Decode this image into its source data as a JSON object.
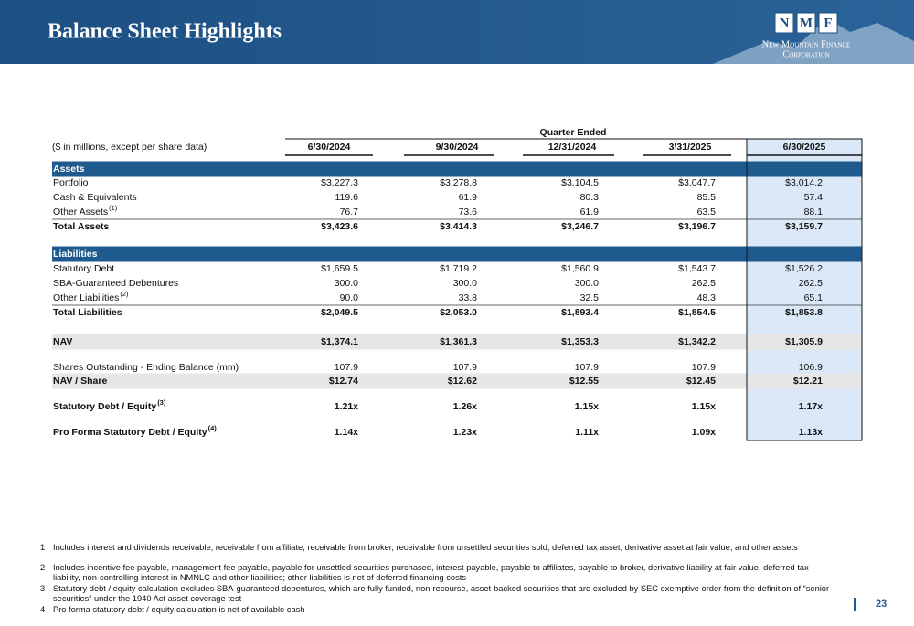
{
  "header": {
    "title": "Balance Sheet Highlights",
    "logo": {
      "letters": [
        "N",
        "M",
        "F"
      ],
      "line1": "New Mountain Finance",
      "line2": "Corporation"
    }
  },
  "table": {
    "group_header": "Quarter Ended",
    "units_label": "($ in millions, except per share data)",
    "columns": [
      "6/30/2024",
      "9/30/2024",
      "12/31/2024",
      "3/31/2025",
      "6/30/2025"
    ],
    "rows": [
      {
        "label": "Assets"
      },
      {
        "label": "Portfolio",
        "values": [
          "$3,227.3",
          "$3,278.8",
          "$3,104.5",
          "$3,047.7",
          "$3,014.2"
        ]
      },
      {
        "label": "Cash & Equivalents",
        "values": [
          "119.6",
          "61.9",
          "80.3",
          "85.5",
          "57.4"
        ]
      },
      {
        "label": "Other Assets",
        "note": "(1)",
        "values": [
          "76.7",
          "73.6",
          "61.9",
          "63.5",
          "88.1"
        ]
      },
      {
        "label": "Total Assets",
        "values": [
          "$3,423.6",
          "$3,414.3",
          "$3,246.7",
          "$3,196.7",
          "$3,159.7"
        ]
      },
      {
        "label": "Liabilities"
      },
      {
        "label": "Statutory Debt",
        "values": [
          "$1,659.5",
          "$1,719.2",
          "$1,560.9",
          "$1,543.7",
          "$1,526.2"
        ]
      },
      {
        "label": "SBA-Guaranteed Debentures",
        "values": [
          "300.0",
          "300.0",
          "300.0",
          "262.5",
          "262.5"
        ]
      },
      {
        "label": "Other Liabilities",
        "note": "(2)",
        "values": [
          "90.0",
          "33.8",
          "32.5",
          "48.3",
          "65.1"
        ]
      },
      {
        "label": "Total Liabilities",
        "values": [
          "$2,049.5",
          "$2,053.0",
          "$1,893.4",
          "$1,854.5",
          "$1,853.8"
        ]
      },
      {
        "label": "NAV",
        "values": [
          "$1,374.1",
          "$1,361.3",
          "$1,353.3",
          "$1,342.2",
          "$1,305.9"
        ]
      },
      {
        "label": "Shares Outstanding - Ending Balance (mm)",
        "values": [
          "107.9",
          "107.9",
          "107.9",
          "107.9",
          "106.9"
        ]
      },
      {
        "label": "NAV / Share",
        "values": [
          "$12.74",
          "$12.62",
          "$12.55",
          "$12.45",
          "$12.21"
        ]
      },
      {
        "label": "Statutory Debt / Equity",
        "note": "(3)",
        "values": [
          "1.21x",
          "1.26x",
          "1.15x",
          "1.15x",
          "1.17x"
        ]
      },
      {
        "label": "Pro Forma Statutory Debt / Equity",
        "note": "(4)",
        "values": [
          "1.14x",
          "1.23x",
          "1.11x",
          "1.09x",
          "1.13x"
        ]
      }
    ]
  },
  "footnotes": [
    {
      "number": "1",
      "text": "Includes interest and dividends receivable, receivable from affiliate, receivable from broker, receivable from unsettled securities sold, deferred tax asset, derivative asset at fair value, and other assets"
    },
    {
      "number": "2",
      "text": "Includes incentive fee payable, management fee payable, payable for unsettled securities purchased, interest payable, payable to affiliates, payable to broker, derivative liability at fair value, deferred tax liability, non-controlling interest in NMNLC and other liabilities; other liabilities is net of deferred financing costs"
    },
    {
      "number": "3",
      "text": "Statutory debt / equity calculation excludes SBA-guaranteed debentures, which are fully funded, non-recourse, asset-backed securities that are excluded by SEC exemptive order from the definition of “senior securities” under the 1940 Act asset coverage test"
    },
    {
      "number": "4",
      "text": "Pro forma statutory debt / equity calculation is net of available cash"
    }
  ],
  "page_number": "23"
}
